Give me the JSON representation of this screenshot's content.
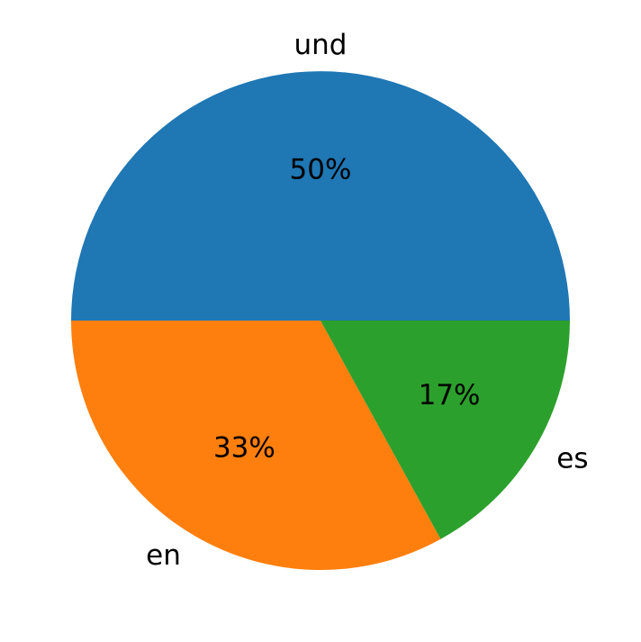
{
  "chart_data": {
    "type": "pie",
    "categories": [
      "und",
      "en",
      "es"
    ],
    "values": [
      50,
      33,
      17
    ],
    "value_labels": [
      "50%",
      "33%",
      "17%"
    ],
    "colors": [
      "#1f77b4",
      "#ff7f0e",
      "#2ca02c"
    ]
  }
}
